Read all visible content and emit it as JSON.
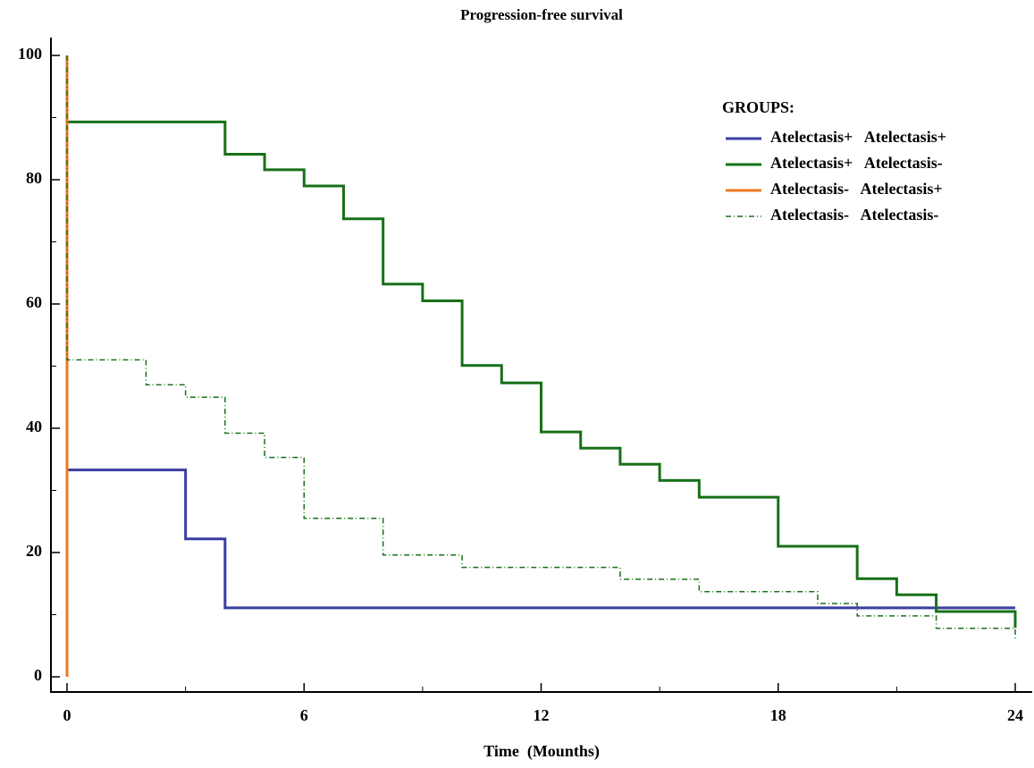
{
  "chart_data": {
    "type": "step",
    "title": "Progression-free survival",
    "x_label": "Time  (Mounths)",
    "legend_title": "GROUPS:",
    "legend_position": "upper right",
    "xlim": [
      0,
      24
    ],
    "xticks": [
      0,
      6,
      12,
      18,
      24
    ],
    "xminor": [
      3,
      9,
      15,
      21
    ],
    "ylim": [
      0,
      100
    ],
    "yticks": [
      0,
      20,
      40,
      60,
      80,
      100
    ],
    "yminor": [
      10,
      30,
      50,
      70,
      90
    ],
    "series": [
      {
        "name": "Atelectasis+   Atelectasis+",
        "color": "#3a3ea0",
        "line_style": "solid",
        "x": [
          0,
          0,
          3,
          4,
          24
        ],
        "values": [
          100,
          33.3,
          22.2,
          11.1,
          11.1
        ]
      },
      {
        "name": "Atelectasis+   Atelectasis-",
        "color": "#187018",
        "line_style": "solid",
        "x": [
          0,
          0,
          4,
          5,
          6,
          7,
          8,
          9,
          10,
          11,
          12,
          13,
          14,
          15,
          16,
          18,
          20,
          21,
          22,
          24
        ],
        "values": [
          100,
          89.3,
          84.1,
          81.6,
          79,
          73.7,
          63.2,
          60.5,
          50.1,
          47.3,
          39.4,
          36.8,
          34.2,
          31.6,
          28.9,
          21,
          15.8,
          13.2,
          10.5,
          7.9
        ]
      },
      {
        "name": "Atelectasis-   Atelectasis+",
        "color": "#f07820",
        "line_style": "solid",
        "x": [
          0,
          0
        ],
        "values": [
          100,
          0
        ]
      },
      {
        "name": "Atelectasis-   Atelectasis-",
        "color": "#187018",
        "line_style": "dashdot",
        "x": [
          0,
          0,
          2,
          3,
          4,
          5,
          6,
          8,
          10,
          14,
          16,
          19,
          20,
          22,
          24
        ],
        "values": [
          100,
          51,
          47,
          45,
          39.2,
          35.3,
          25.5,
          19.6,
          17.6,
          15.7,
          13.7,
          11.8,
          9.8,
          7.8,
          5.9
        ]
      }
    ]
  }
}
